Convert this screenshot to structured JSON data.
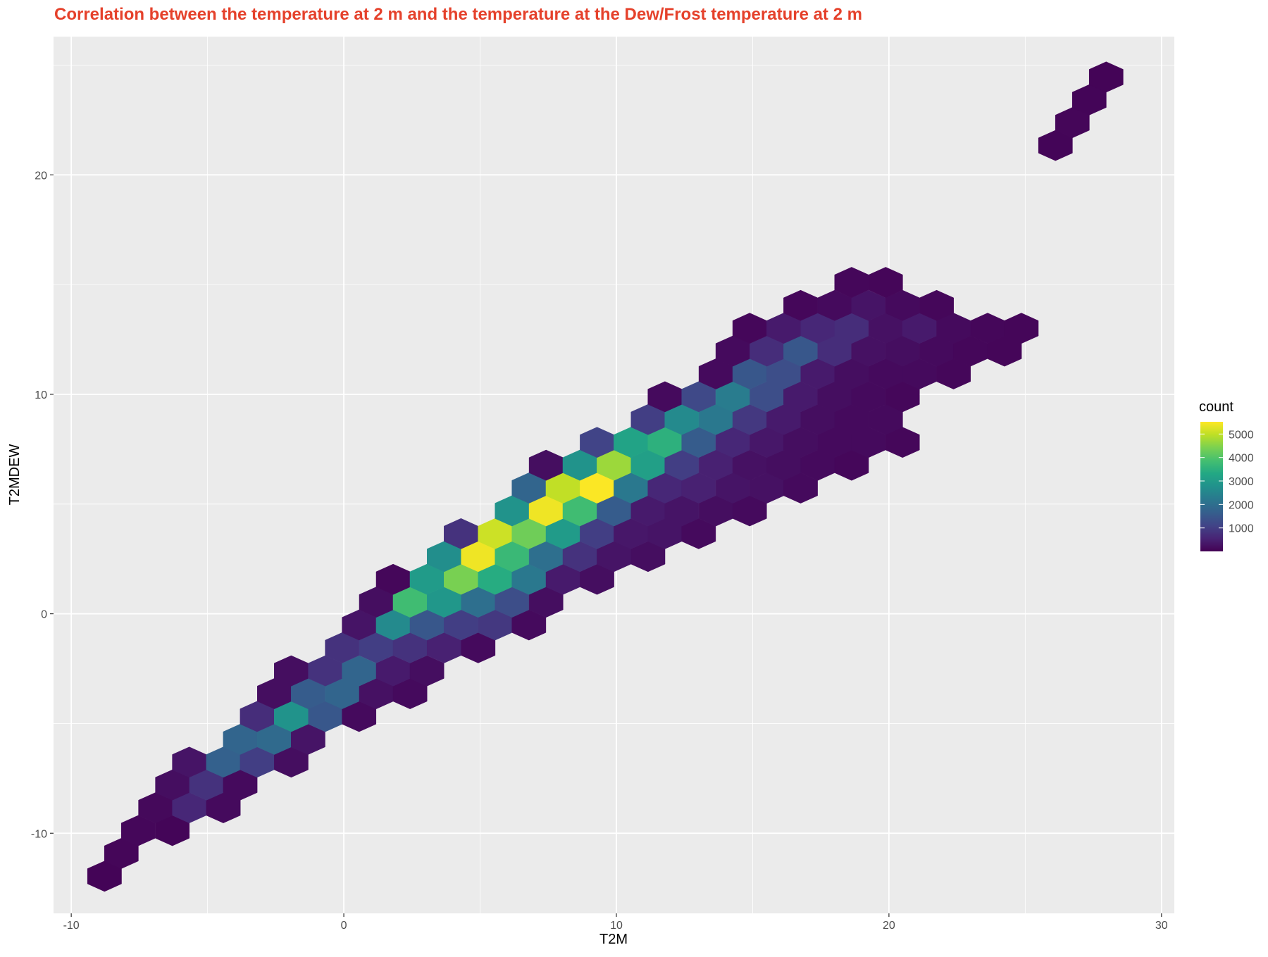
{
  "chart_data": {
    "type": "hexbin",
    "title": "Correlation between the temperature at 2 m and the temperature at the Dew/Frost temperature at 2 m",
    "x_label": "T2M",
    "y_label": "T2MDEW",
    "legend_title": "count",
    "colormap": "viridis",
    "grid": true,
    "xlim": [
      -10.65,
      30.47
    ],
    "ylim": [
      -13.65,
      26.3
    ],
    "xticks": [
      -10,
      0,
      10,
      20,
      30
    ],
    "yticks": [
      -10,
      0,
      10,
      20
    ],
    "clim": [
      1,
      5520
    ],
    "cticks": [
      1000,
      2000,
      3000,
      4000,
      5000
    ],
    "x": [
      -8.78,
      -8.16,
      -7.54,
      -6.29,
      -6.91,
      -5.67,
      -4.42,
      -6.29,
      -5.04,
      -3.8,
      -5.67,
      -4.42,
      -3.18,
      -1.93,
      -3.8,
      -2.55,
      -1.31,
      -3.18,
      -1.93,
      -0.68,
      0.56,
      -2.55,
      -1.31,
      -0.06,
      1.19,
      2.43,
      -1.93,
      -0.68,
      0.56,
      1.81,
      3.05,
      -0.06,
      1.19,
      2.43,
      3.68,
      4.93,
      0.56,
      1.81,
      3.05,
      4.3,
      5.55,
      6.79,
      1.19,
      2.43,
      3.68,
      4.93,
      6.17,
      7.42,
      1.81,
      3.05,
      4.3,
      5.55,
      6.79,
      8.04,
      9.29,
      3.68,
      4.93,
      6.17,
      7.42,
      8.66,
      9.91,
      11.16,
      4.3,
      5.55,
      6.79,
      8.04,
      9.29,
      10.53,
      11.78,
      13.02,
      6.17,
      7.42,
      8.66,
      9.91,
      11.16,
      12.4,
      13.65,
      14.89,
      6.79,
      8.04,
      9.29,
      10.53,
      11.78,
      13.02,
      14.27,
      15.52,
      16.76,
      7.42,
      8.66,
      9.91,
      11.16,
      12.4,
      13.65,
      14.89,
      16.14,
      17.39,
      18.63,
      9.29,
      10.53,
      11.78,
      13.02,
      14.27,
      15.52,
      16.76,
      18.01,
      19.25,
      20.5,
      11.16,
      12.4,
      13.65,
      14.89,
      16.14,
      17.39,
      18.63,
      19.88,
      11.78,
      13.02,
      14.27,
      15.52,
      16.76,
      18.01,
      19.25,
      20.5,
      13.65,
      14.89,
      16.14,
      17.39,
      18.63,
      19.88,
      21.12,
      22.37,
      14.27,
      15.52,
      16.76,
      18.01,
      19.25,
      20.5,
      21.75,
      22.99,
      24.24,
      14.89,
      16.14,
      17.39,
      18.63,
      19.88,
      21.12,
      22.37,
      23.62,
      24.86,
      16.76,
      18.01,
      19.25,
      20.5,
      21.75,
      18.63,
      19.88,
      26.11,
      26.73,
      27.35,
      27.97
    ],
    "y": [
      -11.96,
      -10.92,
      -9.88,
      -9.88,
      -8.84,
      -8.84,
      -8.84,
      -7.8,
      -7.8,
      -7.8,
      -6.76,
      -6.76,
      -6.76,
      -6.76,
      -5.72,
      -5.72,
      -5.72,
      -4.68,
      -4.68,
      -4.68,
      -4.68,
      -3.64,
      -3.64,
      -3.64,
      -3.64,
      -3.64,
      -2.6,
      -2.6,
      -2.6,
      -2.6,
      -2.6,
      -1.55,
      -1.55,
      -1.55,
      -1.55,
      -1.55,
      -0.51,
      -0.51,
      -0.51,
      -0.51,
      -0.51,
      -0.51,
      0.53,
      0.53,
      0.53,
      0.53,
      0.53,
      0.53,
      1.57,
      1.57,
      1.57,
      1.57,
      1.57,
      1.57,
      1.57,
      2.61,
      2.61,
      2.61,
      2.61,
      2.61,
      2.61,
      2.61,
      3.65,
      3.65,
      3.65,
      3.65,
      3.65,
      3.65,
      3.65,
      3.65,
      4.69,
      4.69,
      4.69,
      4.69,
      4.69,
      4.69,
      4.69,
      4.69,
      5.73,
      5.73,
      5.73,
      5.73,
      5.73,
      5.73,
      5.73,
      5.73,
      5.73,
      6.77,
      6.77,
      6.77,
      6.77,
      6.77,
      6.77,
      6.77,
      6.77,
      6.77,
      6.77,
      7.81,
      7.81,
      7.81,
      7.81,
      7.81,
      7.81,
      7.81,
      7.81,
      7.81,
      7.81,
      8.85,
      8.85,
      8.85,
      8.85,
      8.85,
      8.85,
      8.85,
      8.85,
      9.89,
      9.89,
      9.89,
      9.89,
      9.89,
      9.89,
      9.89,
      9.89,
      10.93,
      10.93,
      10.93,
      10.93,
      10.93,
      10.93,
      10.93,
      10.93,
      11.97,
      11.97,
      11.97,
      11.97,
      11.97,
      11.97,
      11.97,
      11.97,
      11.97,
      13.01,
      13.01,
      13.01,
      13.01,
      13.01,
      13.01,
      13.01,
      13.01,
      13.01,
      14.05,
      14.05,
      14.05,
      14.05,
      14.05,
      15.1,
      15.1,
      21.34,
      22.38,
      23.42,
      24.46
    ],
    "values": [
      50,
      80,
      100,
      60,
      120,
      600,
      150,
      200,
      800,
      150,
      300,
      1700,
      1000,
      200,
      1800,
      1900,
      300,
      700,
      2800,
      1500,
      150,
      200,
      1600,
      1800,
      250,
      150,
      200,
      800,
      1800,
      400,
      200,
      800,
      1000,
      800,
      500,
      150,
      300,
      2600,
      1500,
      1000,
      900,
      150,
      200,
      3800,
      2900,
      2000,
      1300,
      200,
      100,
      3000,
      4400,
      3400,
      2200,
      400,
      200,
      2700,
      5400,
      3700,
      2000,
      800,
      300,
      200,
      800,
      5100,
      4300,
      3000,
      1000,
      350,
      300,
      150,
      2800,
      5400,
      3800,
      1600,
      400,
      300,
      200,
      150,
      1800,
      5000,
      5500,
      2200,
      600,
      500,
      300,
      250,
      150,
      200,
      2800,
      4700,
      3100,
      1000,
      500,
      250,
      200,
      150,
      100,
      1100,
      3200,
      3500,
      1600,
      600,
      350,
      200,
      150,
      150,
      100,
      1000,
      2600,
      2200,
      900,
      400,
      200,
      150,
      150,
      150,
      1200,
      2300,
      1300,
      400,
      200,
      150,
      100,
      150,
      1500,
      1300,
      400,
      200,
      150,
      150,
      100,
      150,
      700,
      1500,
      700,
      250,
      200,
      150,
      100,
      80,
      100,
      400,
      600,
      700,
      250,
      400,
      150,
      100,
      80,
      100,
      150,
      300,
      150,
      100,
      100,
      80,
      60,
      80,
      60,
      50
    ]
  }
}
